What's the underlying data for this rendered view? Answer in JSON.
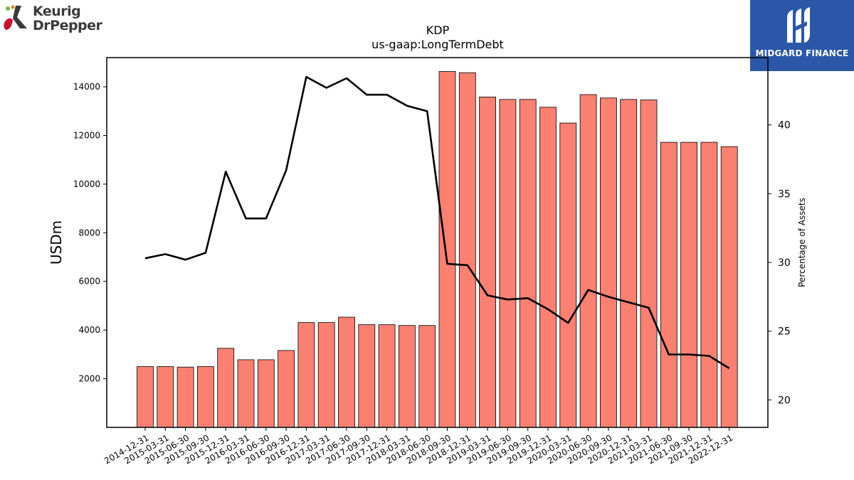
{
  "brand_left": {
    "line1": "Keurig",
    "line2": "DrPepper"
  },
  "brand_right": {
    "name": "MIDGARD FINANCE"
  },
  "colors": {
    "bar_fill": "#fa8072",
    "bar_edge": "#000000",
    "line": "#000000",
    "brand_right_bg": "#2b57a8"
  },
  "chart_data": {
    "type": "bar",
    "title": "KDP",
    "subtitle": "us-gaap:LongTermDebt",
    "ylabel": "USDm",
    "y2label": "Percentage of Assets",
    "ylim": [
      0,
      15200
    ],
    "y2lim": [
      18,
      44.9
    ],
    "yticks": [
      2000,
      4000,
      6000,
      8000,
      10000,
      12000,
      14000
    ],
    "y2ticks": [
      20,
      25,
      30,
      35,
      40
    ],
    "categories": [
      "2014-12-31",
      "2015-03-31",
      "2015-06-30",
      "2015-09-30",
      "2015-12-31",
      "2016-03-31",
      "2016-06-30",
      "2016-09-30",
      "2016-12-31",
      "2017-03-31",
      "2017-06-30",
      "2017-09-30",
      "2017-12-31",
      "2018-03-31",
      "2018-06-30",
      "2018-09-30",
      "2018-12-31",
      "2019-03-31",
      "2019-06-30",
      "2019-09-30",
      "2019-12-31",
      "2020-03-31",
      "2020-06-30",
      "2020-09-30",
      "2020-12-31",
      "2021-03-31",
      "2021-06-30",
      "2021-09-30",
      "2021-12-31",
      "2022-12-31"
    ],
    "series": [
      {
        "type": "bar",
        "axis": "left",
        "values": [
          2500,
          2500,
          2480,
          2500,
          3250,
          2780,
          2780,
          3160,
          4310,
          4310,
          4530,
          4220,
          4220,
          4190,
          4190,
          14630,
          14580,
          13580,
          13480,
          13480,
          13160,
          12510,
          13680,
          13540,
          13480,
          13460,
          11720,
          11720,
          11720,
          11540
        ]
      },
      {
        "type": "line",
        "axis": "right",
        "values": [
          30.3,
          30.6,
          30.2,
          30.7,
          36.6,
          33.2,
          33.2,
          36.7,
          43.5,
          42.7,
          43.4,
          42.2,
          42.2,
          41.4,
          41.0,
          29.9,
          29.8,
          27.6,
          27.3,
          27.4,
          26.6,
          25.6,
          28.0,
          27.5,
          27.1,
          26.7,
          23.3,
          23.3,
          23.2,
          22.3
        ]
      }
    ],
    "grid": false
  }
}
